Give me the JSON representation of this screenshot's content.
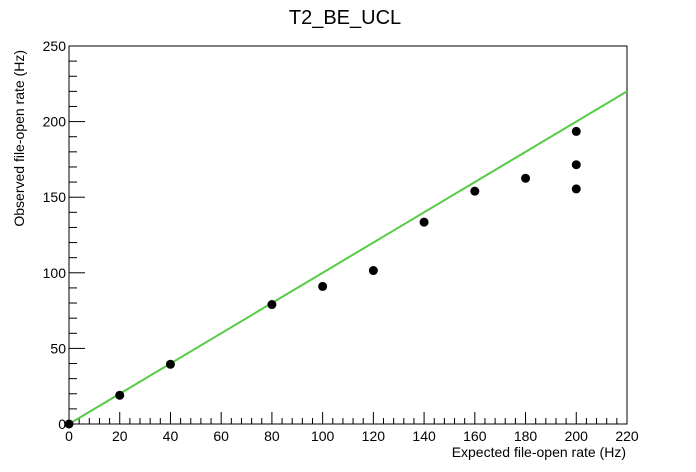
{
  "chart_data": {
    "type": "scatter",
    "title": "T2_BE_UCL",
    "xlabel": "Expected file-open rate (Hz)",
    "ylabel": "Observed file-open rate (Hz)",
    "xlim": [
      0,
      220
    ],
    "ylim": [
      0,
      250
    ],
    "xticks": [
      0,
      20,
      40,
      60,
      80,
      100,
      120,
      140,
      160,
      180,
      200,
      220
    ],
    "yticks": [
      0,
      50,
      100,
      150,
      200,
      250
    ],
    "grid": false,
    "legend": "none",
    "series": [
      {
        "type": "scatter",
        "color": "#000000",
        "x": [
          0,
          20,
          40,
          80,
          100,
          120,
          140,
          160,
          180,
          200,
          200,
          200
        ],
        "y": [
          0,
          19,
          39.5,
          79,
          91,
          101.5,
          133.5,
          154,
          162.5,
          193.5,
          171.5,
          155.5
        ]
      },
      {
        "type": "line",
        "color": "#55cc44",
        "x": [
          0,
          220
        ],
        "y": [
          0,
          220
        ]
      }
    ]
  }
}
